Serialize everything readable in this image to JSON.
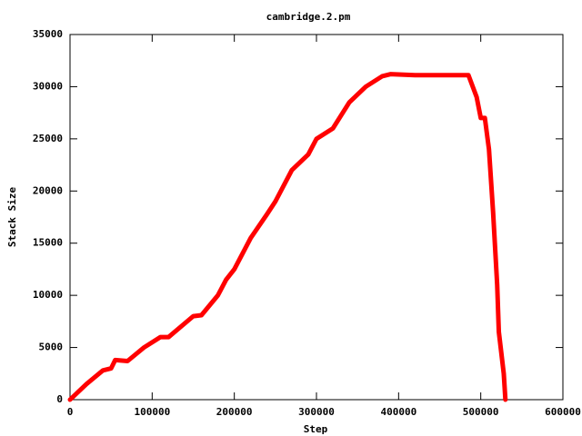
{
  "chart_data": {
    "type": "line",
    "title": "cambridge.2.pm",
    "x_label": "Step",
    "y_label": "Stack Size",
    "x": [
      0,
      20000,
      40000,
      50000,
      55000,
      70000,
      90000,
      110000,
      120000,
      150000,
      160000,
      180000,
      190000,
      200000,
      220000,
      240000,
      250000,
      270000,
      290000,
      300000,
      320000,
      340000,
      360000,
      380000,
      390000,
      420000,
      450000,
      485000,
      495000,
      500000,
      505000,
      510000,
      515000,
      520000,
      522000,
      528000,
      530000
    ],
    "values": [
      0,
      1500,
      2800,
      3000,
      3800,
      3700,
      5000,
      6000,
      6000,
      8000,
      8100,
      10000,
      11500,
      12500,
      15500,
      17800,
      19000,
      22000,
      23500,
      25000,
      26000,
      28500,
      30000,
      31000,
      31200,
      31100,
      31100,
      31100,
      29000,
      27000,
      27000,
      24000,
      18000,
      11000,
      6500,
      2500,
      0
    ],
    "color": "#ff0000",
    "xlim": [
      0,
      600000
    ],
    "xticks": [
      0,
      100000,
      200000,
      300000,
      400000,
      500000,
      600000
    ],
    "ylim": [
      0,
      35000
    ],
    "yticks": [
      0,
      5000,
      10000,
      15000,
      20000,
      25000,
      30000,
      35000
    ]
  }
}
